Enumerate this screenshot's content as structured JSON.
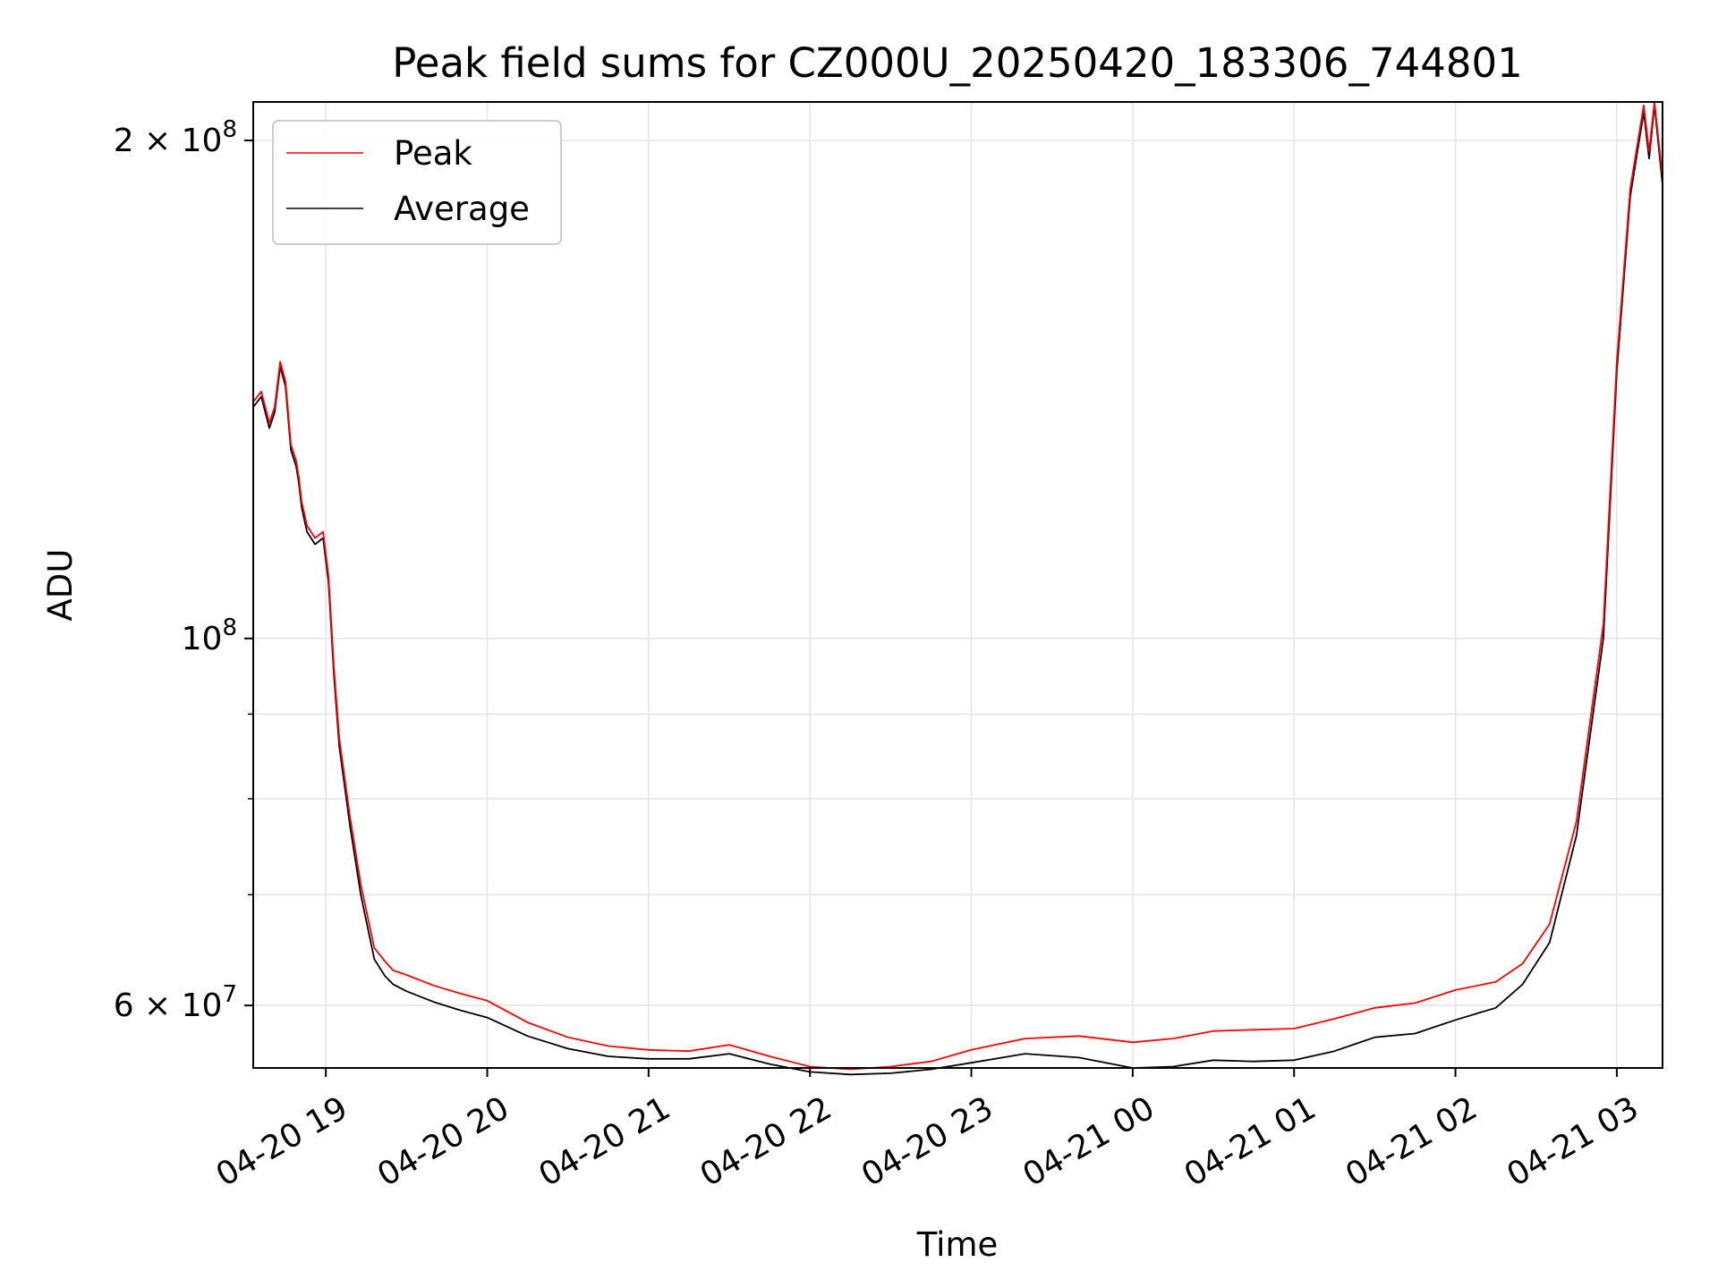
{
  "chart_data": {
    "type": "line",
    "title": "Peak field sums for CZ000U_20250420_183306_744801",
    "xlabel": "Time",
    "ylabel": "ADU",
    "yscale": "log",
    "xlim": [
      "2025-04-20 18:33",
      "2025-04-21 03:17"
    ],
    "ylim": [
      55000000,
      211000000
    ],
    "grid": true,
    "legend": {
      "placement": "top-left",
      "entries": [
        "Peak",
        "Average"
      ]
    },
    "x_ticks": [
      {
        "value": "2025-04-20 19:00",
        "label": "04-20 19"
      },
      {
        "value": "2025-04-20 20:00",
        "label": "04-20 20"
      },
      {
        "value": "2025-04-20 21:00",
        "label": "04-20 21"
      },
      {
        "value": "2025-04-20 22:00",
        "label": "04-20 22"
      },
      {
        "value": "2025-04-20 23:00",
        "label": "04-20 23"
      },
      {
        "value": "2025-04-21 00:00",
        "label": "04-21 00"
      },
      {
        "value": "2025-04-21 01:00",
        "label": "04-21 01"
      },
      {
        "value": "2025-04-21 02:00",
        "label": "04-21 02"
      },
      {
        "value": "2025-04-21 03:00",
        "label": "04-21 03"
      }
    ],
    "y_ticks_major": [
      {
        "value": 60000000,
        "base": "6",
        "pre": "×",
        "mant": "10",
        "exp": "7"
      },
      {
        "value": 100000000,
        "base": "",
        "pre": "",
        "mant": "10",
        "exp": "8"
      },
      {
        "value": 200000000,
        "base": "2",
        "pre": "×",
        "mant": "10",
        "exp": "8"
      }
    ],
    "y_ticks_minor": [
      70000000,
      80000000,
      90000000
    ],
    "series": [
      {
        "name": "Average",
        "color": "#000000",
        "x": [
          "2025-04-20 18:33",
          "2025-04-20 18:36",
          "2025-04-20 18:39",
          "2025-04-20 18:41",
          "2025-04-20 18:43",
          "2025-04-20 18:45",
          "2025-04-20 18:47",
          "2025-04-20 18:49",
          "2025-04-20 18:50",
          "2025-04-20 18:51",
          "2025-04-20 18:53",
          "2025-04-20 18:56",
          "2025-04-20 18:59",
          "2025-04-20 19:01",
          "2025-04-20 19:03",
          "2025-04-20 19:05",
          "2025-04-20 19:09",
          "2025-04-20 19:13",
          "2025-04-20 19:18",
          "2025-04-20 19:22",
          "2025-04-20 19:25",
          "2025-04-20 19:30",
          "2025-04-20 19:40",
          "2025-04-20 19:50",
          "2025-04-20 20:00",
          "2025-04-20 20:15",
          "2025-04-20 20:30",
          "2025-04-20 20:45",
          "2025-04-20 21:00",
          "2025-04-20 21:15",
          "2025-04-20 21:30",
          "2025-04-20 21:45",
          "2025-04-20 22:00",
          "2025-04-20 22:15",
          "2025-04-20 22:30",
          "2025-04-20 22:45",
          "2025-04-20 23:00",
          "2025-04-20 23:20",
          "2025-04-20 23:40",
          "2025-04-21 00:00",
          "2025-04-21 00:15",
          "2025-04-21 00:30",
          "2025-04-21 00:45",
          "2025-04-21 01:00",
          "2025-04-21 01:15",
          "2025-04-21 01:30",
          "2025-04-21 01:45",
          "2025-04-21 02:00",
          "2025-04-21 02:15",
          "2025-04-21 02:25",
          "2025-04-21 02:35",
          "2025-04-21 02:45",
          "2025-04-21 02:55",
          "2025-04-21 03:00",
          "2025-04-21 03:05",
          "2025-04-21 03:10",
          "2025-04-21 03:12",
          "2025-04-21 03:14",
          "2025-04-21 03:17"
        ],
        "values": [
          138000000,
          140000000,
          134000000,
          137000000,
          146000000,
          142000000,
          130000000,
          127000000,
          124000000,
          120000000,
          116000000,
          114000000,
          115000000,
          108000000,
          95000000,
          86000000,
          77000000,
          70000000,
          64000000,
          62500000,
          61800000,
          61200000,
          60300000,
          59600000,
          59000000,
          57500000,
          56500000,
          55900000,
          55700000,
          55700000,
          56100000,
          55300000,
          54700000,
          54500000,
          54600000,
          54900000,
          55400000,
          56100000,
          55800000,
          55000000,
          55100000,
          55600000,
          55500000,
          55600000,
          56300000,
          57400000,
          57700000,
          58800000,
          59800000,
          61800000,
          65500000,
          76000000,
          100000000,
          145000000,
          185000000,
          208000000,
          195000000,
          210000000,
          188000000
        ]
      },
      {
        "name": "Peak",
        "color": "#ff0000",
        "x": [
          "2025-04-20 18:33",
          "2025-04-20 18:36",
          "2025-04-20 18:39",
          "2025-04-20 18:41",
          "2025-04-20 18:43",
          "2025-04-20 18:45",
          "2025-04-20 18:47",
          "2025-04-20 18:49",
          "2025-04-20 18:50",
          "2025-04-20 18:51",
          "2025-04-20 18:53",
          "2025-04-20 18:56",
          "2025-04-20 18:59",
          "2025-04-20 19:01",
          "2025-04-20 19:03",
          "2025-04-20 19:05",
          "2025-04-20 19:09",
          "2025-04-20 19:13",
          "2025-04-20 19:18",
          "2025-04-20 19:22",
          "2025-04-20 19:25",
          "2025-04-20 19:30",
          "2025-04-20 19:40",
          "2025-04-20 19:50",
          "2025-04-20 20:00",
          "2025-04-20 20:15",
          "2025-04-20 20:30",
          "2025-04-20 20:45",
          "2025-04-20 21:00",
          "2025-04-20 21:15",
          "2025-04-20 21:30",
          "2025-04-20 21:45",
          "2025-04-20 22:00",
          "2025-04-20 22:15",
          "2025-04-20 22:30",
          "2025-04-20 22:45",
          "2025-04-20 23:00",
          "2025-04-20 23:20",
          "2025-04-20 23:40",
          "2025-04-21 00:00",
          "2025-04-21 00:15",
          "2025-04-21 00:30",
          "2025-04-21 00:45",
          "2025-04-21 01:00",
          "2025-04-21 01:15",
          "2025-04-21 01:30",
          "2025-04-21 01:45",
          "2025-04-21 02:00",
          "2025-04-21 02:15",
          "2025-04-21 02:25",
          "2025-04-21 02:35",
          "2025-04-21 02:45",
          "2025-04-21 02:55",
          "2025-04-21 03:00",
          "2025-04-21 03:05",
          "2025-04-21 03:10",
          "2025-04-21 03:12",
          "2025-04-21 03:14",
          "2025-04-21 03:17"
        ],
        "values": [
          139000000,
          141000000,
          135000000,
          138000000,
          147000000,
          143000000,
          131000000,
          128000000,
          125000000,
          121000000,
          117000000,
          115000000,
          116000000,
          109000000,
          96000000,
          87000000,
          78000000,
          71000000,
          65000000,
          63800000,
          63000000,
          62600000,
          61700000,
          61000000,
          60400000,
          58600000,
          57400000,
          56700000,
          56400000,
          56300000,
          56800000,
          55900000,
          55100000,
          54900000,
          55100000,
          55500000,
          56400000,
          57300000,
          57500000,
          57000000,
          57300000,
          57900000,
          58000000,
          58100000,
          58900000,
          59800000,
          60200000,
          61300000,
          62000000,
          63600000,
          67200000,
          77500000,
          102000000,
          147000000,
          187000000,
          210000000,
          197000000,
          211000000,
          190000000
        ]
      }
    ]
  }
}
